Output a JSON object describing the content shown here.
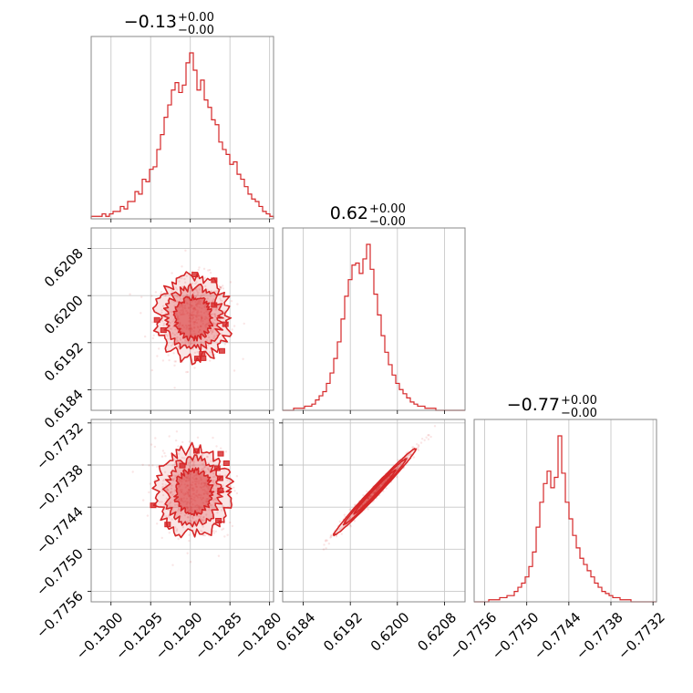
{
  "chart_data": {
    "type": "corner",
    "color": "#d62728",
    "grid": true,
    "parameters": [
      {
        "title": "−0.13",
        "err_plus": "+0.00",
        "err_minus": "−0.00",
        "range": [
          -0.13025,
          -0.12795
        ],
        "ticks": [
          -0.13,
          -0.1295,
          -0.129,
          -0.1285,
          -0.128
        ],
        "tick_labels": [
          "−0.1300",
          "−0.1295",
          "−0.1290",
          "−0.1285",
          "−0.1280"
        ],
        "hist_counts": [
          1,
          1,
          1,
          2,
          1,
          2,
          3,
          3,
          5,
          4,
          7,
          7,
          11,
          10,
          16,
          15,
          20,
          21,
          28,
          34,
          41,
          46,
          52,
          55,
          51,
          54,
          63,
          67,
          60,
          52,
          56,
          48,
          45,
          40,
          38,
          31,
          28,
          26,
          22,
          23,
          18,
          16,
          13,
          10,
          8,
          7,
          5,
          3,
          2,
          1
        ]
      },
      {
        "title": "0.62",
        "err_plus": "+0.00",
        "err_minus": "−0.00",
        "range": [
          0.61805,
          0.62115
        ],
        "ticks": [
          0.6184,
          0.6192,
          0.62,
          0.6208
        ],
        "tick_labels": [
          "0.6184",
          "0.6192",
          "0.6200",
          "0.6208"
        ],
        "hist_counts": [
          0,
          0,
          0,
          1,
          1,
          1,
          2,
          2,
          3,
          5,
          7,
          9,
          13,
          18,
          25,
          33,
          44,
          55,
          63,
          70,
          71,
          66,
          73,
          80,
          68,
          56,
          46,
          36,
          28,
          22,
          17,
          13,
          10,
          8,
          6,
          4,
          3,
          2,
          2,
          1,
          1,
          1,
          0,
          0,
          0,
          0,
          0,
          0,
          0,
          0
        ]
      },
      {
        "title": "−0.77",
        "err_plus": "+0.00",
        "err_minus": "−0.00",
        "range": [
          -0.77575,
          -0.77315
        ],
        "ticks": [
          -0.7756,
          -0.775,
          -0.7744,
          -0.7738,
          -0.7732
        ],
        "tick_labels": [
          "−0.7756",
          "−0.7750",
          "−0.7744",
          "−0.7738",
          "−0.7732"
        ],
        "hist_counts": [
          0,
          0,
          0,
          0,
          1,
          1,
          1,
          2,
          2,
          3,
          3,
          5,
          7,
          9,
          12,
          17,
          24,
          36,
          48,
          57,
          63,
          55,
          60,
          80,
          62,
          48,
          40,
          32,
          26,
          21,
          18,
          15,
          12,
          9,
          7,
          5,
          4,
          3,
          2,
          2,
          1,
          1,
          1,
          0,
          0,
          0,
          0,
          0,
          0,
          0
        ]
      }
    ],
    "pairs": [
      {
        "x_param": 0,
        "y_param": 1,
        "center": [
          -0.12896,
          0.61962
        ],
        "sigma": [
          0.00023,
          0.00035
        ],
        "correlation": 0.0
      },
      {
        "x_param": 0,
        "y_param": 2,
        "center": [
          -0.12896,
          -0.77418
        ],
        "sigma": [
          0.00023,
          0.00031
        ],
        "correlation": 0.0
      },
      {
        "x_param": 1,
        "y_param": 2,
        "center": [
          0.61962,
          -0.77418
        ],
        "sigma": [
          0.00035,
          0.00031
        ],
        "correlation": 0.99
      }
    ]
  }
}
